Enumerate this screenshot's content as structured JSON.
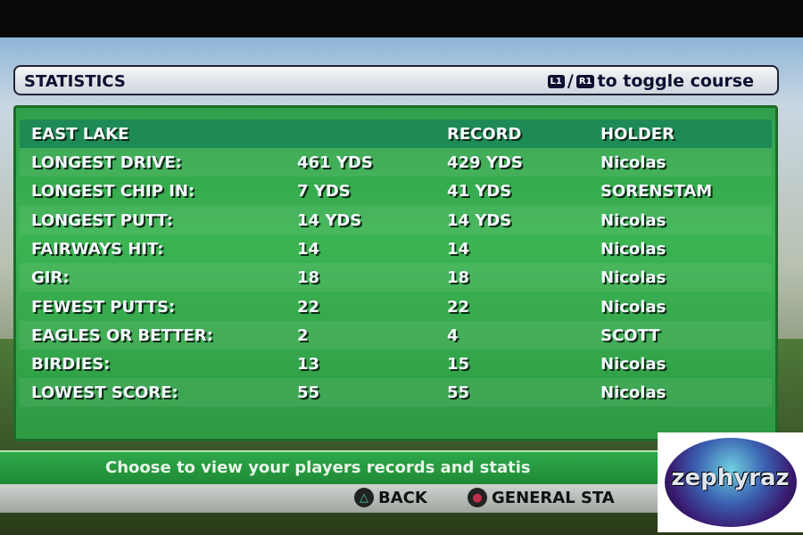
{
  "header": {
    "title": "STATISTICS",
    "toggle_l1": "L1",
    "toggle_r1": "R1",
    "toggle_sep": "/",
    "toggle_text": "to toggle course"
  },
  "table": {
    "columns": [
      "EAST LAKE",
      "",
      "RECORD",
      "HOLDER"
    ],
    "rows": [
      [
        "LONGEST DRIVE:",
        "461 YDS",
        "429 YDS",
        "Nicolas"
      ],
      [
        "LONGEST CHIP IN:",
        "7 YDS",
        "41 YDS",
        "SORENSTAM"
      ],
      [
        "LONGEST PUTT:",
        "14 YDS",
        "14 YDS",
        "Nicolas"
      ],
      [
        "FAIRWAYS HIT:",
        "14",
        "14",
        "Nicolas"
      ],
      [
        "GIR:",
        "18",
        "18",
        "Nicolas"
      ],
      [
        "FEWEST PUTTS:",
        "22",
        "22",
        "Nicolas"
      ],
      [
        "EAGLES OR BETTER:",
        "2",
        "4",
        "SCOTT"
      ],
      [
        "BIRDIES:",
        "13",
        "15",
        "Nicolas"
      ],
      [
        "LOWEST SCORE:",
        "55",
        "55",
        "Nicolas"
      ]
    ]
  },
  "info_text": "Choose to view your players records and statis",
  "buttons": {
    "back": "BACK",
    "general": "GENERAL STA",
    "triangle_icon": "△",
    "circle_icon": "●"
  },
  "watermark": "zephyraz",
  "colors": {
    "panel": "#3cb452",
    "header_row": "#1e8a55",
    "circle_button": "#c0304a",
    "triangle_button": "#3fd0a0"
  }
}
